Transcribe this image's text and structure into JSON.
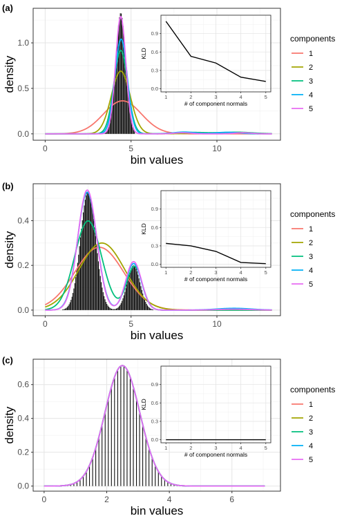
{
  "colors": {
    "1": "#F8766D",
    "2": "#A3A500",
    "3": "#00BF7D",
    "4": "#00B0F6",
    "5": "#E76BF3"
  },
  "chart_data": [
    {
      "panel_label": "(a)",
      "type": "bar",
      "xlabel": "bin values",
      "ylabel": "density",
      "xlim": [
        -0.7,
        13.7
      ],
      "ylim": [
        -0.07,
        1.38
      ],
      "xticks": [
        0,
        5,
        10
      ],
      "yticks": [
        0.0,
        0.5,
        1.0
      ],
      "yticklabels": [
        "0.0",
        "0.5",
        "1.0"
      ],
      "grid": true,
      "histogram": {
        "bin_start": 3.0,
        "bin_end": 5.2,
        "bin_width": 0.055,
        "shape": "gaussian",
        "mean": 4.4,
        "sd": 0.29,
        "peak": 1.33
      },
      "series": [
        {
          "name": "1",
          "components": [
            {
              "weight": 1.0,
              "mean": 4.5,
              "sd": 1.1
            }
          ]
        },
        {
          "name": "2",
          "components": [
            {
              "weight": 0.95,
              "mean": 4.4,
              "sd": 0.55
            },
            {
              "weight": 0.05,
              "mean": 10.5,
              "sd": 1.5
            }
          ]
        },
        {
          "name": "3",
          "components": [
            {
              "weight": 0.92,
              "mean": 4.4,
              "sd": 0.4
            },
            {
              "weight": 0.04,
              "mean": 8.5,
              "sd": 1.0
            },
            {
              "weight": 0.04,
              "mean": 11.2,
              "sd": 0.9
            }
          ]
        },
        {
          "name": "4",
          "components": [
            {
              "weight": 0.94,
              "mean": 4.42,
              "sd": 0.36
            },
            {
              "weight": 0.03,
              "mean": 8.1,
              "sd": 0.6
            },
            {
              "weight": 0.03,
              "mean": 10.6,
              "sd": 0.7
            }
          ]
        },
        {
          "name": "5",
          "components": [
            {
              "weight": 0.97,
              "mean": 4.4,
              "sd": 0.3
            },
            {
              "weight": 0.015,
              "mean": 8.0,
              "sd": 0.5
            },
            {
              "weight": 0.015,
              "mean": 11.5,
              "sd": 0.5
            }
          ]
        }
      ],
      "inset": {
        "type": "line",
        "xlabel": "# of component normals",
        "ylabel": "KLD",
        "x": [
          1,
          2,
          3,
          4,
          5
        ],
        "y": [
          1.1,
          0.53,
          0.42,
          0.19,
          0.12
        ],
        "xlim": [
          0.8,
          5.2
        ],
        "ylim": [
          -0.05,
          1.2
        ],
        "yticks": [
          0.0,
          0.3,
          0.6,
          0.9
        ],
        "yticklabels": [
          "0.0",
          "0.3",
          "0.6",
          "0.9"
        ]
      },
      "legend": {
        "title": "components",
        "placement": "right",
        "entries": [
          "1",
          "2",
          "3",
          "4",
          "5"
        ]
      }
    },
    {
      "panel_label": "(b)",
      "type": "bar",
      "xlabel": "bin values",
      "ylabel": "density",
      "xlim": [
        -0.7,
        13.7
      ],
      "ylim": [
        -0.025,
        0.565
      ],
      "xticks": [
        0,
        5,
        10
      ],
      "yticks": [
        0.0,
        0.2,
        0.4
      ],
      "yticklabels": [
        "0.0",
        "0.2",
        "0.4"
      ],
      "grid": true,
      "histogram": {
        "bin_start": 0.9,
        "bin_end": 6.3,
        "bin_width": 0.055,
        "shape": "bimodal",
        "modes": [
          {
            "mean": 2.5,
            "sd": 0.45,
            "peak": 0.53
          },
          {
            "mean": 5.15,
            "sd": 0.38,
            "peak": 0.2
          }
        ]
      },
      "series": [
        {
          "name": "1",
          "components": [
            {
              "weight": 1.0,
              "mean": 3.15,
              "sd": 1.42
            }
          ]
        },
        {
          "name": "2",
          "components": [
            {
              "weight": 1.0,
              "mean": 3.3,
              "sd": 1.33
            }
          ]
        },
        {
          "name": "3",
          "components": [
            {
              "weight": 0.78,
              "mean": 2.5,
              "sd": 0.78
            },
            {
              "weight": 0.22,
              "mean": 5.2,
              "sd": 0.45
            }
          ]
        },
        {
          "name": "4",
          "components": [
            {
              "weight": 0.74,
              "mean": 2.45,
              "sd": 0.56
            },
            {
              "weight": 0.24,
              "mean": 5.15,
              "sd": 0.46
            },
            {
              "weight": 0.02,
              "mean": 11.0,
              "sd": 1.0
            }
          ]
        },
        {
          "name": "5",
          "components": [
            {
              "weight": 0.74,
              "mean": 2.45,
              "sd": 0.55
            },
            {
              "weight": 0.25,
              "mean": 5.15,
              "sd": 0.46
            },
            {
              "weight": 0.01,
              "mean": 11.0,
              "sd": 1.0
            }
          ]
        }
      ],
      "inset": {
        "type": "line",
        "xlabel": "# of component normals",
        "ylabel": "KLD",
        "x": [
          1,
          2,
          3,
          4,
          5
        ],
        "y": [
          0.34,
          0.3,
          0.21,
          0.03,
          0.01
        ],
        "xlim": [
          0.8,
          5.2
        ],
        "ylim": [
          -0.05,
          1.2
        ],
        "yticks": [
          0.0,
          0.3,
          0.6,
          0.9
        ],
        "yticklabels": [
          "0.0",
          "0.3",
          "0.6",
          "0.9"
        ]
      },
      "legend": {
        "title": "components",
        "placement": "right",
        "entries": [
          "1",
          "2",
          "3",
          "4",
          "5"
        ]
      }
    },
    {
      "panel_label": "(c)",
      "type": "bar",
      "xlabel": "bin values",
      "ylabel": "density",
      "xlim": [
        -0.35,
        7.55
      ],
      "ylim": [
        -0.03,
        0.75
      ],
      "xticks": [
        0,
        2,
        4,
        6
      ],
      "yticks": [
        0.0,
        0.2,
        0.4,
        0.6
      ],
      "yticklabels": [
        "0.0",
        "0.2",
        "0.4",
        "0.6"
      ],
      "grid": true,
      "histogram": {
        "bin_start": 0.75,
        "bin_end": 4.25,
        "bin_width": 0.1,
        "shape": "gaussian",
        "mean": 2.5,
        "sd": 0.56,
        "peak": 0.71
      },
      "series": [
        {
          "name": "1",
          "components": [
            {
              "weight": 1.0,
              "mean": 2.5,
              "sd": 0.56
            }
          ]
        },
        {
          "name": "2",
          "components": [
            {
              "weight": 1.0,
              "mean": 2.5,
              "sd": 0.56
            }
          ]
        },
        {
          "name": "3",
          "components": [
            {
              "weight": 1.0,
              "mean": 2.5,
              "sd": 0.56
            }
          ]
        },
        {
          "name": "4",
          "components": [
            {
              "weight": 1.0,
              "mean": 2.5,
              "sd": 0.56
            }
          ]
        },
        {
          "name": "5",
          "components": [
            {
              "weight": 1.0,
              "mean": 2.5,
              "sd": 0.56
            }
          ]
        }
      ],
      "inset": {
        "type": "line",
        "xlabel": "# of component normals",
        "ylabel": "KLD",
        "x": [
          1,
          2,
          3,
          4,
          5
        ],
        "y": [
          0.0,
          0.0,
          0.0,
          0.0,
          0.0
        ],
        "xlim": [
          0.8,
          5.2
        ],
        "ylim": [
          -0.05,
          1.2
        ],
        "yticks": [
          0.0,
          0.3,
          0.6,
          0.9
        ],
        "yticklabels": [
          "0.0",
          "0.3",
          "0.6",
          "0.9"
        ]
      },
      "legend": {
        "title": "components",
        "placement": "right",
        "entries": [
          "1",
          "2",
          "3",
          "4",
          "5"
        ]
      }
    }
  ]
}
